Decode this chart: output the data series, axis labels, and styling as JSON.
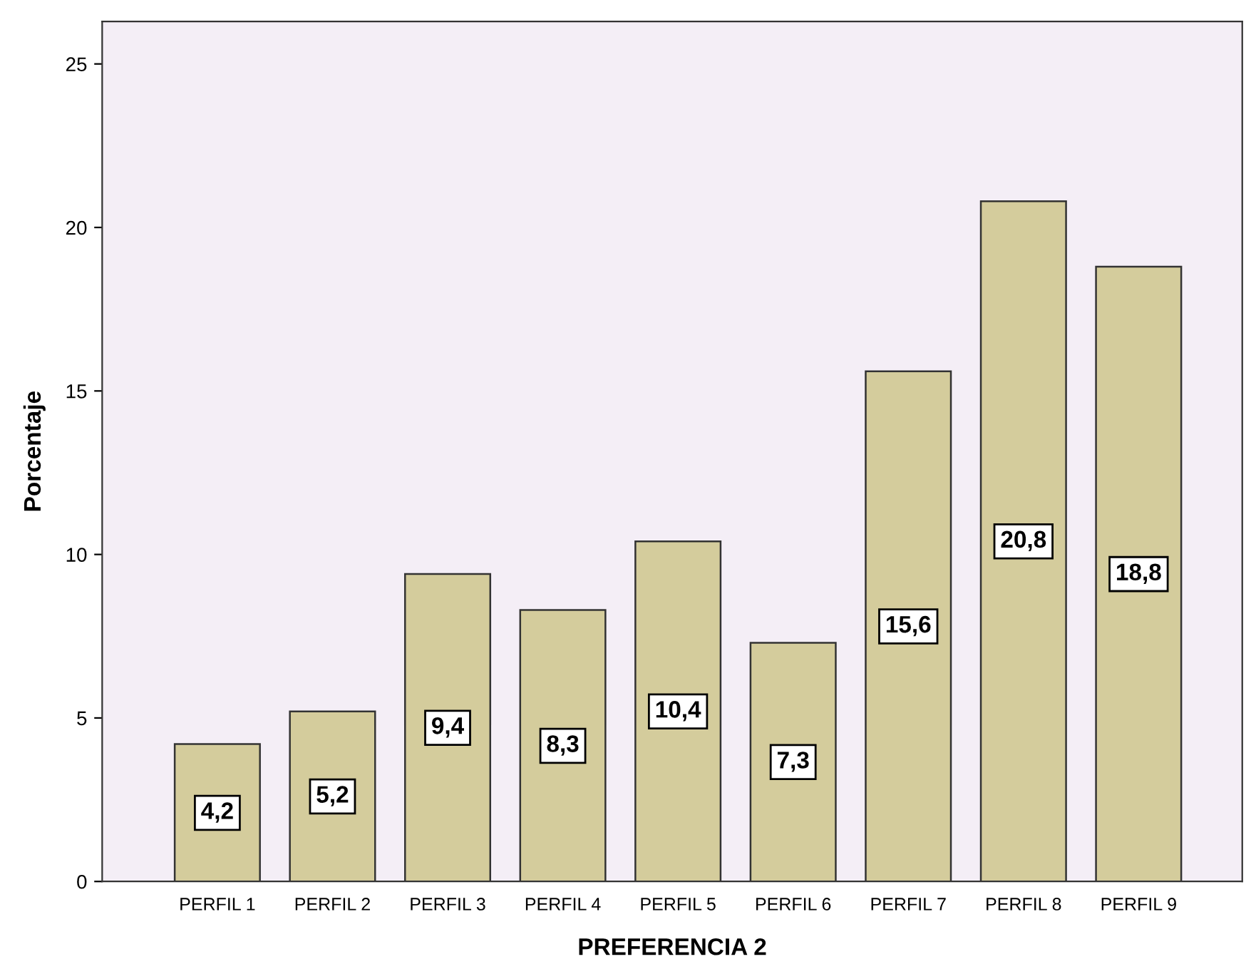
{
  "chart_data": {
    "type": "bar",
    "xlabel": "PREFERENCIA 2",
    "ylabel": "Porcentaje",
    "categories": [
      "PERFIL 1",
      "PERFIL 2",
      "PERFIL 3",
      "PERFIL 4",
      "PERFIL 5",
      "PERFIL 6",
      "PERFIL 7",
      "PERFIL 8",
      "PERFIL 9"
    ],
    "values": [
      4.2,
      5.2,
      9.4,
      8.3,
      10.4,
      7.3,
      15.6,
      20.8,
      18.8
    ],
    "value_labels": [
      "4,2",
      "5,2",
      "9,4",
      "8,3",
      "10,4",
      "7,3",
      "15,6",
      "20,8",
      "18,8"
    ],
    "color": "#d4cc9c",
    "ylim": [
      0,
      26.3
    ],
    "yticks": [
      0,
      5,
      10,
      15,
      20,
      25
    ],
    "grid": false,
    "legend": false
  }
}
